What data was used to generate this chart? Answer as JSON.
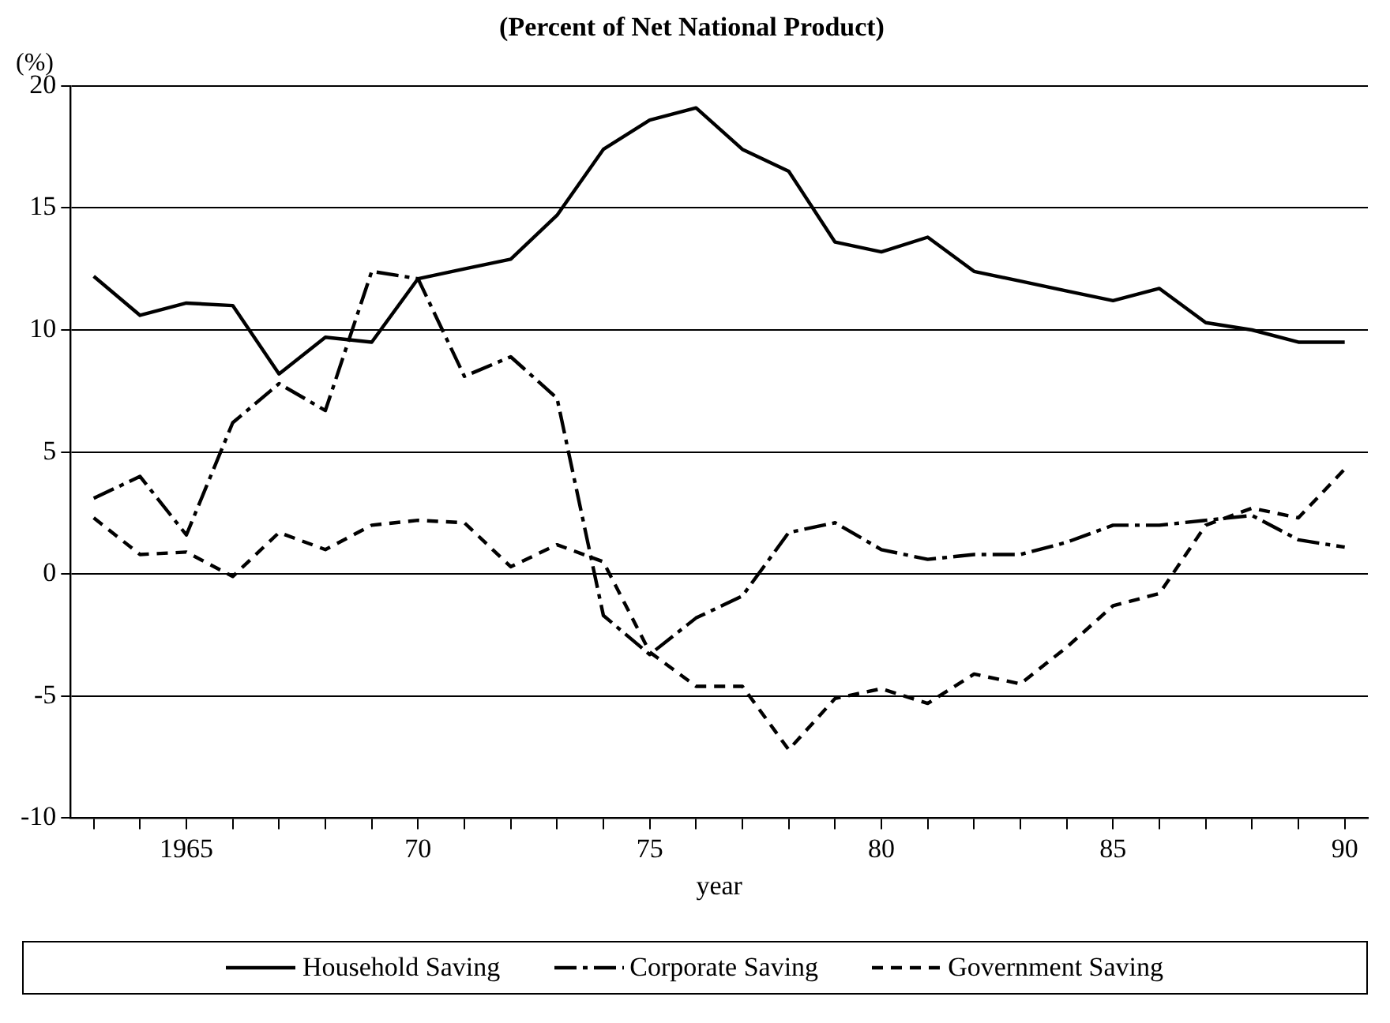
{
  "chart_data": {
    "type": "line",
    "title": "(Percent of Net National Product)",
    "ylabel": "(%)",
    "xlabel": "year",
    "x": [
      1963,
      1964,
      1965,
      1966,
      1967,
      1968,
      1969,
      1970,
      1971,
      1972,
      1973,
      1974,
      1975,
      1976,
      1977,
      1978,
      1979,
      1980,
      1981,
      1982,
      1983,
      1984,
      1985,
      1986,
      1987,
      1988,
      1989,
      1990
    ],
    "series": [
      {
        "name": "Household Saving",
        "color": "#000000",
        "line_style": "solid",
        "values": [
          12.2,
          10.6,
          11.1,
          11.0,
          8.2,
          9.7,
          9.5,
          12.1,
          12.5,
          12.9,
          14.7,
          17.4,
          18.6,
          19.1,
          17.4,
          16.5,
          13.6,
          13.2,
          13.8,
          12.4,
          12.0,
          11.6,
          11.2,
          11.7,
          10.3,
          10.0,
          9.5,
          9.5
        ]
      },
      {
        "name": "Corporate Saving",
        "color": "#000000",
        "line_style": "dashdot",
        "values": [
          3.1,
          4.0,
          1.6,
          6.2,
          7.8,
          6.7,
          12.4,
          12.1,
          8.1,
          8.9,
          7.2,
          -1.7,
          -3.3,
          -1.8,
          -0.9,
          1.7,
          2.1,
          1.0,
          0.6,
          0.8,
          0.8,
          1.3,
          2.0,
          2.0,
          2.2,
          2.4,
          1.4,
          1.1
        ]
      },
      {
        "name": "Government Saving",
        "color": "#000000",
        "line_style": "dashed",
        "values": [
          2.3,
          0.8,
          0.9,
          -0.1,
          1.7,
          1.0,
          2.0,
          2.2,
          2.1,
          0.3,
          1.2,
          0.5,
          -3.2,
          -4.6,
          -4.6,
          -7.2,
          -5.1,
          -4.7,
          -5.3,
          -4.1,
          -4.5,
          -3.0,
          -1.3,
          -0.8,
          2.0,
          2.7,
          2.3,
          4.3
        ]
      }
    ],
    "xlim": [
      1962.5,
      1990.5
    ],
    "xticks": [
      {
        "value": 1963,
        "label": null
      },
      {
        "value": 1964,
        "label": null
      },
      {
        "value": 1965,
        "label": "1965"
      },
      {
        "value": 1966,
        "label": null
      },
      {
        "value": 1967,
        "label": null
      },
      {
        "value": 1968,
        "label": null
      },
      {
        "value": 1969,
        "label": null
      },
      {
        "value": 1970,
        "label": "70"
      },
      {
        "value": 1971,
        "label": null
      },
      {
        "value": 1972,
        "label": null
      },
      {
        "value": 1973,
        "label": null
      },
      {
        "value": 1974,
        "label": null
      },
      {
        "value": 1975,
        "label": "75"
      },
      {
        "value": 1976,
        "label": null
      },
      {
        "value": 1977,
        "label": null
      },
      {
        "value": 1978,
        "label": null
      },
      {
        "value": 1979,
        "label": null
      },
      {
        "value": 1980,
        "label": "80"
      },
      {
        "value": 1981,
        "label": null
      },
      {
        "value": 1982,
        "label": null
      },
      {
        "value": 1983,
        "label": null
      },
      {
        "value": 1984,
        "label": null
      },
      {
        "value": 1985,
        "label": "85"
      },
      {
        "value": 1986,
        "label": null
      },
      {
        "value": 1987,
        "label": null
      },
      {
        "value": 1988,
        "label": null
      },
      {
        "value": 1989,
        "label": null
      },
      {
        "value": 1990,
        "label": "90"
      }
    ],
    "ylim": [
      -10,
      20
    ],
    "yticks": [
      -10,
      -5,
      0,
      5,
      10,
      15,
      20
    ],
    "grid": "y",
    "legend": "bottom",
    "marker": "none"
  }
}
